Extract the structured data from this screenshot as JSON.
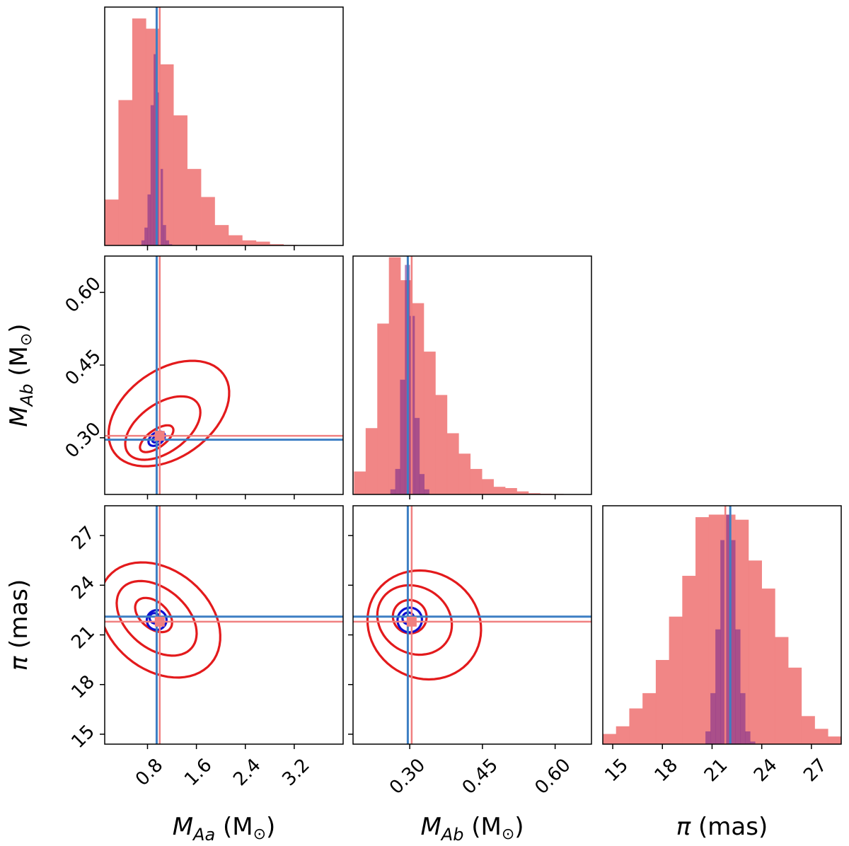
{
  "chart_data": {
    "type": "corner",
    "title": "",
    "variables": [
      {
        "key": "MAa",
        "symbol": "M",
        "subscript": "Aa",
        "unit_text": " (M",
        "unit_sub": "⊙",
        "unit_close": ")",
        "range": [
          0.1,
          4.0
        ],
        "ticks": [
          "0.8",
          "1.6",
          "2.4",
          "3.2"
        ],
        "tick_values": [
          0.8,
          1.6,
          2.4,
          3.2
        ]
      },
      {
        "key": "MAb",
        "symbol": "M",
        "subscript": "Ab",
        "unit_text": " (M",
        "unit_sub": "⊙",
        "unit_close": ")",
        "range": [
          0.183,
          0.675
        ],
        "ticks": [
          "0.30",
          "0.45",
          "0.60"
        ],
        "tick_values": [
          0.3,
          0.45,
          0.6
        ]
      },
      {
        "key": "plx",
        "symbol": "π",
        "subscript": "",
        "unit_text": " (mas)",
        "unit_sub": "",
        "unit_close": "",
        "range": [
          14.4,
          28.8
        ],
        "ticks": [
          "15",
          "18",
          "21",
          "24",
          "27"
        ],
        "tick_values": [
          15,
          18,
          21,
          24,
          27
        ]
      }
    ],
    "truth": {
      "red": [
        1.0,
        0.304,
        21.8
      ],
      "blue": [
        0.95,
        0.296,
        22.1
      ]
    },
    "colors": {
      "wide_hist": "#f08080",
      "narrow_hist": "#7b2c8e",
      "red_contour": "#e31a1c",
      "blue_contour": "#1010d0",
      "red_line": "#f08080",
      "blue_line": "#3d7fc4"
    },
    "histograms": {
      "MAa": {
        "edges": [
          0.1,
          0.325,
          0.55,
          0.775,
          1.0,
          1.225,
          1.45,
          1.675,
          1.9,
          2.125,
          2.35,
          2.575,
          2.8,
          3.025,
          3.25,
          3.475
        ],
        "wide": [
          0.18,
          0.57,
          0.89,
          0.85,
          0.71,
          0.51,
          0.3,
          0.19,
          0.08,
          0.04,
          0.02,
          0.015,
          0.005,
          0.002,
          0.0
        ],
        "narrow_edges": [
          0.7,
          0.75,
          0.8,
          0.85,
          0.9,
          0.95,
          1.0,
          1.05,
          1.1,
          1.15,
          1.2
        ],
        "narrow": [
          0.02,
          0.07,
          0.2,
          0.55,
          0.75,
          0.6,
          0.3,
          0.08,
          0.02,
          0.005
        ]
      },
      "MAb": {
        "edges": [
          0.185,
          0.209,
          0.233,
          0.257,
          0.281,
          0.305,
          0.329,
          0.353,
          0.377,
          0.401,
          0.425,
          0.449,
          0.473,
          0.497,
          0.521,
          0.545,
          0.569,
          0.593,
          0.617,
          0.641
        ],
        "wide": [
          0.09,
          0.26,
          0.67,
          0.93,
          0.84,
          0.75,
          0.56,
          0.39,
          0.24,
          0.16,
          0.1,
          0.06,
          0.03,
          0.025,
          0.012,
          0.005,
          0.003,
          0.002,
          0.001
        ],
        "narrow_edges": [
          0.26,
          0.27,
          0.28,
          0.29,
          0.3,
          0.31,
          0.32,
          0.33,
          0.34
        ],
        "narrow": [
          0.02,
          0.1,
          0.45,
          0.9,
          0.7,
          0.3,
          0.08,
          0.02
        ]
      },
      "plx": {
        "edges": [
          14.4,
          15.2,
          16.0,
          16.8,
          17.6,
          18.4,
          19.2,
          20.0,
          20.8,
          21.6,
          22.4,
          23.2,
          24.0,
          24.8,
          25.6,
          26.4,
          27.2,
          28.0,
          28.8
        ],
        "wide": [
          0.04,
          0.07,
          0.14,
          0.2,
          0.33,
          0.5,
          0.66,
          0.89,
          0.9,
          0.9,
          0.88,
          0.72,
          0.61,
          0.42,
          0.3,
          0.11,
          0.06,
          0.03
        ],
        "narrow_edges": [
          20.6,
          20.9,
          21.2,
          21.5,
          21.8,
          22.1,
          22.4,
          22.7,
          23.0,
          23.3,
          23.6
        ],
        "narrow": [
          0.05,
          0.2,
          0.45,
          0.8,
          0.9,
          0.8,
          0.45,
          0.2,
          0.05,
          0.01
        ]
      }
    },
    "contours": {
      "MAa_MAb": {
        "red": [
          {
            "cx": 0.95,
            "cy": 0.298,
            "a": 0.32,
            "b": 0.018,
            "angle": 0.62
          },
          {
            "cx": 1.05,
            "cy": 0.32,
            "a": 0.7,
            "b": 0.05,
            "angle": 0.62
          },
          {
            "cx": 1.15,
            "cy": 0.35,
            "a": 1.1,
            "b": 0.09,
            "angle": 0.62
          }
        ],
        "blue": [
          {
            "cx": 0.95,
            "cy": 0.298,
            "a": 0.08,
            "b": 0.006,
            "angle": 0.62
          },
          {
            "cx": 0.95,
            "cy": 0.298,
            "a": 0.15,
            "b": 0.012,
            "angle": 0.62
          }
        ]
      },
      "MAa_plx": {
        "red": [
          {
            "cx": 0.9,
            "cy": 22.2,
            "a": 0.35,
            "b": 0.8,
            "angle": -0.7
          },
          {
            "cx": 0.95,
            "cy": 22.0,
            "a": 0.75,
            "b": 1.8,
            "angle": -0.7
          },
          {
            "cx": 1.0,
            "cy": 21.9,
            "a": 1.1,
            "b": 3.0,
            "angle": -0.7
          }
        ],
        "blue": [
          {
            "cx": 0.92,
            "cy": 22.0,
            "a": 0.09,
            "b": 0.3,
            "angle": -0.7
          },
          {
            "cx": 0.95,
            "cy": 21.9,
            "a": 0.16,
            "b": 0.6,
            "angle": -0.7
          }
        ]
      },
      "MAb_plx": {
        "red": [
          {
            "cx": 0.3,
            "cy": 22.1,
            "a": 0.035,
            "b": 1.0,
            "angle": -0.55
          },
          {
            "cx": 0.31,
            "cy": 21.9,
            "a": 0.08,
            "b": 2.0,
            "angle": -0.55
          },
          {
            "cx": 0.33,
            "cy": 21.6,
            "a": 0.12,
            "b": 3.2,
            "angle": -0.55
          }
        ],
        "blue": [
          {
            "cx": 0.297,
            "cy": 22.0,
            "a": 0.012,
            "b": 0.35,
            "angle": -0.55
          },
          {
            "cx": 0.3,
            "cy": 21.9,
            "a": 0.025,
            "b": 0.75,
            "angle": -0.55
          }
        ]
      }
    }
  }
}
